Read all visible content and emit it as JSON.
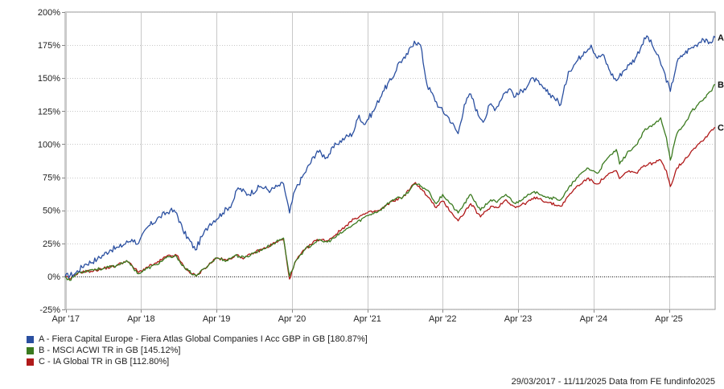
{
  "chart_data": {
    "type": "line",
    "title": "",
    "xlabel": "",
    "ylabel": "",
    "x_tick_labels": [
      "Apr '17",
      "Apr '18",
      "Apr '19",
      "Apr '20",
      "Apr '21",
      "Apr '22",
      "Apr '23",
      "Apr '24",
      "Apr '25"
    ],
    "x_ticks": [
      "2017-04-01",
      "2018-04-01",
      "2019-04-01",
      "2020-04-01",
      "2021-04-01",
      "2022-04-01",
      "2023-04-01",
      "2024-04-01",
      "2025-04-01"
    ],
    "xlim": [
      "2017-03-29",
      "2025-11-11"
    ],
    "ylim": [
      -25,
      200
    ],
    "y_ticks": [
      -25,
      0,
      25,
      50,
      75,
      100,
      125,
      150,
      175,
      200
    ],
    "y_tick_labels": [
      "-25%",
      "0%",
      "25%",
      "50%",
      "75%",
      "100%",
      "125%",
      "150%",
      "175%",
      "200%"
    ],
    "grid": true,
    "legend_position": "bottom-left",
    "series": [
      {
        "name": "A - Fiera Capital Europe - Fiera Atlas Global Companies I Acc GBP in GB [180.87%]",
        "end_label": "A",
        "color": "#2a4fa0",
        "points": [
          [
            "2017-03-29",
            0
          ],
          [
            "2017-05-15",
            2
          ],
          [
            "2017-07-01",
            9
          ],
          [
            "2017-09-01",
            13
          ],
          [
            "2017-11-01",
            20
          ],
          [
            "2017-12-15",
            22
          ],
          [
            "2018-02-15",
            28
          ],
          [
            "2018-03-20",
            25
          ],
          [
            "2018-05-01",
            37
          ],
          [
            "2018-07-01",
            45
          ],
          [
            "2018-08-20",
            50
          ],
          [
            "2018-09-20",
            48
          ],
          [
            "2018-10-20",
            35
          ],
          [
            "2018-12-20",
            20
          ],
          [
            "2019-01-20",
            30
          ],
          [
            "2019-03-01",
            40
          ],
          [
            "2019-05-01",
            48
          ],
          [
            "2019-06-15",
            55
          ],
          [
            "2019-07-15",
            67
          ],
          [
            "2019-09-01",
            62
          ],
          [
            "2019-11-01",
            68
          ],
          [
            "2019-12-20",
            65
          ],
          [
            "2020-01-20",
            68
          ],
          [
            "2020-02-20",
            70
          ],
          [
            "2020-03-20",
            48
          ],
          [
            "2020-04-15",
            65
          ],
          [
            "2020-06-01",
            78
          ],
          [
            "2020-08-01",
            95
          ],
          [
            "2020-09-15",
            90
          ],
          [
            "2020-11-01",
            100
          ],
          [
            "2020-12-15",
            105
          ],
          [
            "2021-01-20",
            108
          ],
          [
            "2021-02-20",
            122
          ],
          [
            "2021-03-15",
            115
          ],
          [
            "2021-05-01",
            125
          ],
          [
            "2021-06-15",
            140
          ],
          [
            "2021-08-01",
            150
          ],
          [
            "2021-09-01",
            162
          ],
          [
            "2021-10-01",
            165
          ],
          [
            "2021-11-15",
            178
          ],
          [
            "2021-12-15",
            175
          ],
          [
            "2022-01-15",
            145
          ],
          [
            "2022-03-15",
            128
          ],
          [
            "2022-05-01",
            120
          ],
          [
            "2022-06-15",
            108
          ],
          [
            "2022-07-15",
            130
          ],
          [
            "2022-08-15",
            138
          ],
          [
            "2022-09-20",
            122
          ],
          [
            "2022-10-20",
            118
          ],
          [
            "2022-11-15",
            130
          ],
          [
            "2022-12-15",
            127
          ],
          [
            "2023-01-20",
            138
          ],
          [
            "2023-02-20",
            142
          ],
          [
            "2023-03-20",
            136
          ],
          [
            "2023-05-01",
            142
          ],
          [
            "2023-06-15",
            150
          ],
          [
            "2023-07-15",
            145
          ],
          [
            "2023-08-15",
            140
          ],
          [
            "2023-09-20",
            136
          ],
          [
            "2023-10-25",
            130
          ],
          [
            "2023-12-01",
            155
          ],
          [
            "2023-12-28",
            160
          ],
          [
            "2024-02-15",
            170
          ],
          [
            "2024-03-20",
            175
          ],
          [
            "2024-04-20",
            165
          ],
          [
            "2024-05-15",
            168
          ],
          [
            "2024-06-20",
            155
          ],
          [
            "2024-07-20",
            148
          ],
          [
            "2024-08-20",
            155
          ],
          [
            "2024-09-20",
            160
          ],
          [
            "2024-10-20",
            165
          ],
          [
            "2024-11-20",
            175
          ],
          [
            "2024-12-15",
            182
          ],
          [
            "2025-01-10",
            175
          ],
          [
            "2025-02-01",
            168
          ],
          [
            "2025-03-01",
            158
          ],
          [
            "2025-04-08",
            140
          ],
          [
            "2025-05-10",
            162
          ],
          [
            "2025-06-10",
            168
          ],
          [
            "2025-07-10",
            172
          ],
          [
            "2025-08-10",
            175
          ],
          [
            "2025-09-10",
            180
          ],
          [
            "2025-10-10",
            176
          ],
          [
            "2025-11-11",
            180.87
          ]
        ]
      },
      {
        "name": "B - MSCI ACWI TR in GB [145.12%]",
        "end_label": "B",
        "color": "#3b7a1f",
        "points": [
          [
            "2017-03-29",
            0
          ],
          [
            "2017-04-20",
            -3
          ],
          [
            "2017-06-01",
            3
          ],
          [
            "2017-08-01",
            5
          ],
          [
            "2017-10-01",
            6
          ],
          [
            "2017-12-01",
            8
          ],
          [
            "2018-01-20",
            12
          ],
          [
            "2018-03-20",
            2
          ],
          [
            "2018-05-01",
            6
          ],
          [
            "2018-06-15",
            9
          ],
          [
            "2018-08-01",
            14
          ],
          [
            "2018-09-20",
            15
          ],
          [
            "2018-10-30",
            6
          ],
          [
            "2018-12-24",
            0
          ],
          [
            "2019-02-01",
            6
          ],
          [
            "2019-04-01",
            14
          ],
          [
            "2019-05-20",
            12
          ],
          [
            "2019-07-01",
            16
          ],
          [
            "2019-08-15",
            14
          ],
          [
            "2019-10-01",
            18
          ],
          [
            "2019-12-01",
            22
          ],
          [
            "2020-01-15",
            26
          ],
          [
            "2020-02-20",
            29
          ],
          [
            "2020-03-20",
            0
          ],
          [
            "2020-04-20",
            12
          ],
          [
            "2020-06-01",
            20
          ],
          [
            "2020-08-01",
            27
          ],
          [
            "2020-09-20",
            26
          ],
          [
            "2020-11-01",
            30
          ],
          [
            "2020-12-15",
            35
          ],
          [
            "2021-02-01",
            40
          ],
          [
            "2021-04-01",
            46
          ],
          [
            "2021-06-01",
            50
          ],
          [
            "2021-08-01",
            58
          ],
          [
            "2021-09-20",
            60
          ],
          [
            "2021-11-20",
            70
          ],
          [
            "2021-12-20",
            68
          ],
          [
            "2022-01-20",
            65
          ],
          [
            "2022-03-01",
            55
          ],
          [
            "2022-04-01",
            62
          ],
          [
            "2022-06-15",
            48
          ],
          [
            "2022-08-15",
            62
          ],
          [
            "2022-10-01",
            50
          ],
          [
            "2022-11-20",
            58
          ],
          [
            "2022-12-20",
            56
          ],
          [
            "2023-02-01",
            62
          ],
          [
            "2023-03-20",
            55
          ],
          [
            "2023-05-01",
            60
          ],
          [
            "2023-07-01",
            64
          ],
          [
            "2023-08-20",
            60
          ],
          [
            "2023-10-25",
            58
          ],
          [
            "2023-12-28",
            72
          ],
          [
            "2024-03-01",
            82
          ],
          [
            "2024-04-20",
            78
          ],
          [
            "2024-06-01",
            88
          ],
          [
            "2024-07-20",
            96
          ],
          [
            "2024-08-05",
            85
          ],
          [
            "2024-09-20",
            95
          ],
          [
            "2024-10-30",
            100
          ],
          [
            "2024-12-01",
            110
          ],
          [
            "2025-01-20",
            115
          ],
          [
            "2025-02-20",
            120
          ],
          [
            "2025-03-20",
            105
          ],
          [
            "2025-04-08",
            88
          ],
          [
            "2025-05-10",
            108
          ],
          [
            "2025-06-15",
            115
          ],
          [
            "2025-07-20",
            125
          ],
          [
            "2025-08-20",
            130
          ],
          [
            "2025-09-20",
            135
          ],
          [
            "2025-10-20",
            140
          ],
          [
            "2025-11-11",
            145.12
          ]
        ]
      },
      {
        "name": "C - IA Global TR in GB [112.80%]",
        "end_label": "C",
        "color": "#b01a1a",
        "points": [
          [
            "2017-03-29",
            0
          ],
          [
            "2017-04-20",
            -2
          ],
          [
            "2017-06-01",
            3
          ],
          [
            "2017-08-01",
            4
          ],
          [
            "2017-10-01",
            6
          ],
          [
            "2017-12-01",
            8
          ],
          [
            "2018-01-20",
            12
          ],
          [
            "2018-03-20",
            3
          ],
          [
            "2018-05-01",
            7
          ],
          [
            "2018-06-15",
            10
          ],
          [
            "2018-08-01",
            15
          ],
          [
            "2018-09-20",
            16
          ],
          [
            "2018-10-30",
            6
          ],
          [
            "2018-12-24",
            0
          ],
          [
            "2019-02-01",
            6
          ],
          [
            "2019-04-01",
            14
          ],
          [
            "2019-05-20",
            12
          ],
          [
            "2019-07-01",
            16
          ],
          [
            "2019-08-15",
            14
          ],
          [
            "2019-10-01",
            18
          ],
          [
            "2019-12-01",
            22
          ],
          [
            "2020-01-15",
            26
          ],
          [
            "2020-02-20",
            28
          ],
          [
            "2020-03-20",
            -2
          ],
          [
            "2020-04-20",
            12
          ],
          [
            "2020-06-01",
            20
          ],
          [
            "2020-08-01",
            28
          ],
          [
            "2020-09-20",
            27
          ],
          [
            "2020-11-01",
            32
          ],
          [
            "2020-12-15",
            38
          ],
          [
            "2021-02-01",
            44
          ],
          [
            "2021-04-01",
            48
          ],
          [
            "2021-06-01",
            50
          ],
          [
            "2021-08-01",
            57
          ],
          [
            "2021-09-20",
            60
          ],
          [
            "2021-11-20",
            71
          ],
          [
            "2021-12-20",
            66
          ],
          [
            "2022-01-20",
            60
          ],
          [
            "2022-03-01",
            52
          ],
          [
            "2022-04-01",
            57
          ],
          [
            "2022-06-15",
            42
          ],
          [
            "2022-08-15",
            55
          ],
          [
            "2022-10-01",
            45
          ],
          [
            "2022-11-20",
            53
          ],
          [
            "2022-12-20",
            52
          ],
          [
            "2023-02-01",
            58
          ],
          [
            "2023-03-20",
            52
          ],
          [
            "2023-05-01",
            55
          ],
          [
            "2023-07-01",
            60
          ],
          [
            "2023-08-20",
            56
          ],
          [
            "2023-10-25",
            53
          ],
          [
            "2023-12-28",
            66
          ],
          [
            "2024-03-01",
            74
          ],
          [
            "2024-04-20",
            70
          ],
          [
            "2024-06-01",
            76
          ],
          [
            "2024-07-20",
            80
          ],
          [
            "2024-08-05",
            74
          ],
          [
            "2024-09-20",
            80
          ],
          [
            "2024-10-30",
            78
          ],
          [
            "2024-12-01",
            84
          ],
          [
            "2025-01-20",
            86
          ],
          [
            "2025-02-20",
            88
          ],
          [
            "2025-03-20",
            80
          ],
          [
            "2025-04-08",
            68
          ],
          [
            "2025-05-10",
            82
          ],
          [
            "2025-06-15",
            88
          ],
          [
            "2025-07-20",
            95
          ],
          [
            "2025-08-20",
            100
          ],
          [
            "2025-09-20",
            104
          ],
          [
            "2025-10-20",
            110
          ],
          [
            "2025-11-11",
            112.8
          ]
        ]
      }
    ]
  },
  "footer": {
    "text": "29/03/2017 - 11/11/2025 Data from FE fundinfo2025"
  }
}
